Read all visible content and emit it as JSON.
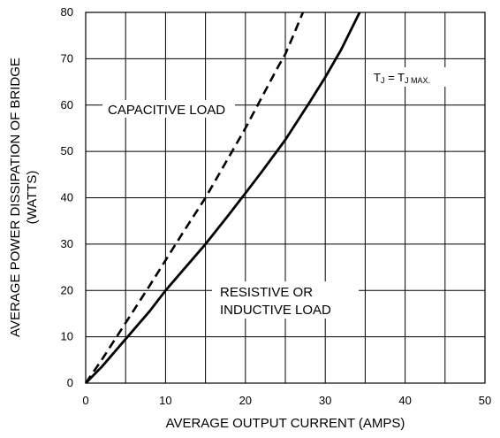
{
  "chart_data": {
    "type": "line",
    "xlabel": "AVERAGE OUTPUT CURRENT (AMPS)",
    "ylabel_line1": "AVERAGE POWER DISSIPATION OF BRIDGE",
    "ylabel_line2": "(WATTS)",
    "xlim": [
      0,
      50
    ],
    "ylim": [
      0,
      80
    ],
    "xticks": [
      0,
      10,
      20,
      30,
      40,
      50
    ],
    "yticks": [
      0,
      10,
      20,
      30,
      40,
      50,
      60,
      70,
      80
    ],
    "grid": true,
    "series": [
      {
        "name": "CAPACITIVE LOAD",
        "style": "dashed",
        "x": [
          0,
          2,
          5,
          8,
          10,
          12,
          15,
          18,
          20,
          22,
          24,
          25,
          26,
          27.2
        ],
        "y": [
          0,
          5,
          13,
          21,
          26.5,
          32,
          40,
          49,
          55,
          61.5,
          68,
          71,
          75,
          80
        ]
      },
      {
        "name": "RESISTIVE OR INDUCTIVE LOAD",
        "style": "solid",
        "x": [
          0,
          2,
          5,
          8,
          10,
          12,
          15,
          18,
          20,
          22,
          25,
          28,
          30,
          32,
          34.3
        ],
        "y": [
          0,
          3.5,
          9.5,
          15.5,
          20,
          24,
          30,
          36.5,
          41,
          45.5,
          52.5,
          60.5,
          66,
          72,
          80
        ]
      }
    ],
    "annotations": {
      "capacitive": "CAPACITIVE LOAD",
      "resistive_line1": "RESISTIVE OR",
      "resistive_line2": "INDUCTIVE LOAD",
      "tj_main_1": "T",
      "tj_sub_1": "J",
      "tj_eq": " = T",
      "tj_sub_2": "J MAX."
    }
  }
}
